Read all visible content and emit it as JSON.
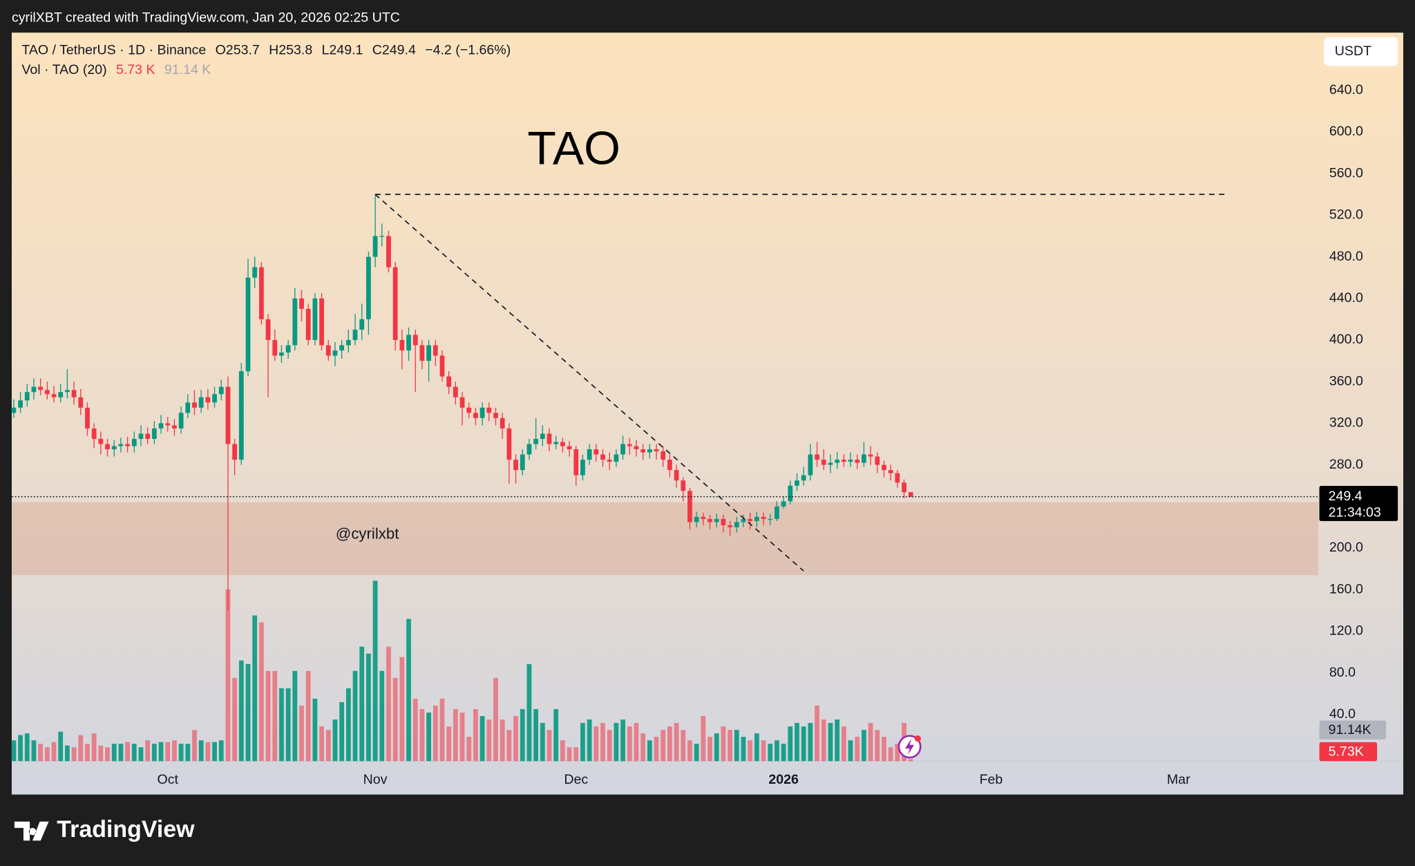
{
  "header": {
    "credit": "cyrilXBT created with TradingView.com, Jan 20, 2026 02:25 UTC",
    "logo": "TradingView"
  },
  "chart_data": {
    "type": "candlestick",
    "symbol": "TAO / TetherUS · 1D · Binance",
    "ohlc_legend": [
      "O253.7",
      "H253.8",
      "L249.1",
      "C249.4",
      "−4.2 (−1.66%)"
    ],
    "volume_legend": {
      "name": "Vol · TAO (20)",
      "value": "5.73 K",
      "ma": "91.14 K"
    },
    "currency": "USDT",
    "annotations": {
      "title": "TAO",
      "watermark": "@cyrilxbt"
    },
    "open": [
      330,
      335,
      342,
      350,
      355,
      352,
      348,
      345,
      350,
      352,
      345,
      335,
      315,
      305,
      300,
      295,
      298,
      300,
      298,
      305,
      310,
      305,
      315,
      320,
      318,
      315,
      330,
      340,
      335,
      345,
      340,
      348,
      355,
      300,
      285,
      370,
      460,
      470,
      420,
      400,
      385,
      388,
      395,
      440,
      430,
      400,
      440,
      395,
      385,
      390,
      395,
      400,
      410,
      420,
      480,
      500,
      500,
      470,
      400,
      390,
      405,
      395,
      380,
      395,
      385,
      365,
      355,
      345,
      335,
      330,
      325,
      335,
      330,
      325,
      315,
      285,
      275,
      290,
      300,
      305,
      310,
      300,
      302,
      298,
      295,
      270,
      285,
      295,
      290,
      285,
      283,
      290,
      300,
      298,
      295,
      292,
      295,
      293,
      285,
      275,
      265,
      255,
      225,
      230,
      228,
      225,
      228,
      222,
      220,
      225,
      228,
      226,
      230,
      228,
      228,
      240,
      245,
      260,
      265,
      270,
      290,
      285,
      280,
      282,
      285,
      283,
      285,
      282,
      290,
      288,
      280,
      275,
      272,
      263,
      253.7
    ],
    "high": [
      343,
      350,
      358,
      363,
      363,
      360,
      356,
      358,
      372,
      360,
      353,
      340,
      320,
      312,
      305,
      304,
      306,
      307,
      312,
      318,
      316,
      322,
      328,
      326,
      324,
      336,
      348,
      352,
      352,
      353,
      355,
      362,
      365,
      305,
      378,
      478,
      480,
      475,
      425,
      410,
      395,
      400,
      450,
      448,
      435,
      445,
      445,
      400,
      398,
      400,
      410,
      425,
      435,
      485,
      540,
      512,
      505,
      475,
      410,
      412,
      410,
      400,
      400,
      400,
      390,
      370,
      360,
      350,
      340,
      335,
      340,
      340,
      335,
      330,
      320,
      290,
      295,
      305,
      325,
      318,
      315,
      308,
      306,
      303,
      298,
      290,
      300,
      300,
      295,
      292,
      295,
      308,
      306,
      304,
      300,
      300,
      300,
      298,
      290,
      280,
      268,
      258,
      235,
      234,
      232,
      233,
      232,
      226,
      230,
      232,
      234,
      235,
      234,
      233,
      245,
      250,
      265,
      272,
      278,
      300,
      302,
      295,
      290,
      292,
      290,
      292,
      290,
      302,
      298,
      292,
      284,
      280,
      275,
      266,
      253.8
    ],
    "low": [
      325,
      330,
      336,
      343,
      347,
      343,
      340,
      340,
      344,
      338,
      328,
      308,
      296,
      290,
      288,
      288,
      292,
      292,
      292,
      298,
      300,
      300,
      310,
      312,
      308,
      310,
      325,
      328,
      330,
      333,
      335,
      342,
      140,
      270,
      280,
      365,
      450,
      415,
      345,
      380,
      378,
      382,
      390,
      418,
      395,
      395,
      390,
      380,
      375,
      382,
      388,
      395,
      400,
      405,
      470,
      490,
      465,
      390,
      372,
      380,
      350,
      372,
      360,
      375,
      360,
      348,
      338,
      318,
      325,
      318,
      318,
      322,
      318,
      305,
      262,
      262,
      270,
      285,
      295,
      298,
      293,
      295,
      292,
      288,
      260,
      265,
      280,
      283,
      278,
      275,
      278,
      285,
      290,
      288,
      285,
      286,
      285,
      278,
      268,
      258,
      245,
      218,
      220,
      222,
      218,
      220,
      215,
      212,
      215,
      220,
      218,
      220,
      222,
      222,
      226,
      238,
      242,
      255,
      260,
      265,
      278,
      275,
      272,
      276,
      278,
      278,
      276,
      278,
      280,
      272,
      268,
      265,
      258,
      248,
      249.1
    ],
    "close": [
      335,
      342,
      350,
      355,
      352,
      348,
      345,
      350,
      352,
      345,
      335,
      315,
      305,
      300,
      295,
      298,
      300,
      298,
      305,
      310,
      305,
      315,
      320,
      318,
      315,
      330,
      340,
      335,
      345,
      340,
      348,
      355,
      300,
      285,
      370,
      460,
      470,
      420,
      400,
      385,
      388,
      395,
      440,
      430,
      400,
      440,
      395,
      385,
      390,
      395,
      400,
      410,
      420,
      480,
      500,
      500,
      470,
      400,
      390,
      405,
      395,
      380,
      395,
      385,
      365,
      355,
      345,
      335,
      330,
      325,
      335,
      330,
      325,
      315,
      285,
      275,
      290,
      300,
      305,
      310,
      300,
      302,
      298,
      295,
      270,
      285,
      295,
      290,
      285,
      283,
      290,
      300,
      298,
      295,
      292,
      295,
      293,
      285,
      275,
      265,
      255,
      225,
      230,
      228,
      225,
      228,
      222,
      220,
      225,
      228,
      226,
      230,
      228,
      228,
      240,
      245,
      260,
      265,
      270,
      290,
      285,
      280,
      282,
      285,
      283,
      285,
      282,
      290,
      288,
      280,
      275,
      272,
      263,
      253.7,
      249.4
    ],
    "volume": [
      60,
      75,
      80,
      60,
      50,
      40,
      55,
      85,
      45,
      40,
      75,
      50,
      80,
      45,
      40,
      50,
      50,
      55,
      50,
      40,
      60,
      50,
      55,
      55,
      60,
      50,
      50,
      90,
      60,
      55,
      55,
      60,
      495,
      240,
      290,
      280,
      420,
      400,
      260,
      260,
      210,
      210,
      260,
      160,
      260,
      180,
      100,
      90,
      120,
      170,
      210,
      260,
      330,
      310,
      520,
      260,
      330,
      240,
      300,
      410,
      180,
      150,
      140,
      160,
      180,
      100,
      150,
      140,
      70,
      150,
      130,
      120,
      240,
      120,
      90,
      130,
      150,
      280,
      150,
      110,
      90,
      150,
      60,
      40,
      40,
      110,
      120,
      100,
      110,
      90,
      110,
      120,
      100,
      110,
      80,
      60,
      70,
      90,
      100,
      110,
      90,
      60,
      50,
      130,
      70,
      80,
      100,
      90,
      90,
      70,
      60,
      80,
      60,
      50,
      60,
      50,
      100,
      110,
      100,
      110,
      160,
      120,
      110,
      120,
      100,
      60,
      70,
      90,
      110,
      90,
      70,
      40,
      50,
      110,
      5.73
    ],
    "up_color": "#089981",
    "down_color": "#f23645",
    "ylim": [
      -4.8,
      695.5
    ],
    "yticks": [
      {
        "value": 40,
        "label": "40.0"
      },
      {
        "value": 80,
        "label": "80.0"
      },
      {
        "value": 120,
        "label": "120.0"
      },
      {
        "value": 160,
        "label": "160.0"
      },
      {
        "value": 200,
        "label": "200.0"
      },
      {
        "value": 280,
        "label": "280.0"
      },
      {
        "value": 320,
        "label": "320.0"
      },
      {
        "value": 360,
        "label": "360.0"
      },
      {
        "value": 400,
        "label": "400.0"
      },
      {
        "value": 440,
        "label": "440.0"
      },
      {
        "value": 480,
        "label": "480.0"
      },
      {
        "value": 520,
        "label": "520.0"
      },
      {
        "value": 560,
        "label": "560.0"
      },
      {
        "value": 600,
        "label": "600.0"
      },
      {
        "value": 640,
        "label": "640.0"
      }
    ],
    "xlim": [
      -0.3,
      194.9
    ],
    "xticks": [
      {
        "value": 23,
        "label": "Oct"
      },
      {
        "value": 54,
        "label": "Nov"
      },
      {
        "value": 84,
        "label": "Dec"
      },
      {
        "value": 115,
        "label": "2026",
        "bold": true
      },
      {
        "value": 146,
        "label": "Feb"
      },
      {
        "value": 174,
        "label": "Mar"
      }
    ],
    "volume_lim": [
      0,
      2100
    ],
    "last_price": {
      "value": 249.4,
      "countdown": "21:34:03"
    },
    "volume_labels": {
      "ma": "91.14K",
      "last": "5.73K"
    },
    "resistance": {
      "value": 540,
      "x": [
        54,
        181.3
      ]
    },
    "trendline": {
      "x": [
        54,
        118
      ],
      "y": [
        540,
        178
      ]
    },
    "zone": [
      174,
      244
    ]
  }
}
